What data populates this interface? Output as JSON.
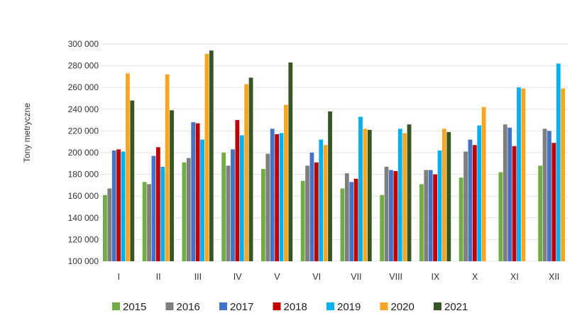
{
  "chart_data": {
    "type": "bar",
    "title": "",
    "xlabel": "",
    "ylabel": "Tony metryczne",
    "ylim": [
      100000,
      300000
    ],
    "yticks": [
      100000,
      120000,
      140000,
      160000,
      180000,
      200000,
      220000,
      240000,
      260000,
      280000,
      300000
    ],
    "ytick_labels": [
      "100 000",
      "120 000",
      "140 000",
      "160 000",
      "180 000",
      "200 000",
      "220 000",
      "240 000",
      "260 000",
      "280 000",
      "300 000"
    ],
    "grid": true,
    "legend": "bottom",
    "categories": [
      "I",
      "II",
      "III",
      "IV",
      "V",
      "VI",
      "VII",
      "VIII",
      "IX",
      "X",
      "XI",
      "XII"
    ],
    "series": [
      {
        "name": "2015",
        "color": "#70ad47",
        "values": [
          161000,
          173000,
          191000,
          200000,
          185000,
          174000,
          167000,
          161000,
          171000,
          177000,
          182000,
          188000
        ]
      },
      {
        "name": "2016",
        "color": "#7f7f7f",
        "values": [
          167000,
          171000,
          195000,
          188000,
          199000,
          188000,
          181000,
          187000,
          184000,
          201000,
          226000,
          222000
        ]
      },
      {
        "name": "2017",
        "color": "#4472c4",
        "values": [
          202000,
          197000,
          228000,
          203000,
          222000,
          200000,
          173000,
          184000,
          184000,
          212000,
          223000,
          220000
        ]
      },
      {
        "name": "2018",
        "color": "#c00000",
        "values": [
          203000,
          205000,
          227000,
          230000,
          217000,
          191000,
          176000,
          183000,
          180000,
          207000,
          206000,
          209000
        ]
      },
      {
        "name": "2019",
        "color": "#00b0f0",
        "values": [
          201000,
          187000,
          212000,
          216000,
          218000,
          212000,
          233000,
          222000,
          202000,
          225000,
          260000,
          282000
        ]
      },
      {
        "name": "2020",
        "color": "#f5a623",
        "values": [
          273000,
          272000,
          291000,
          263000,
          244000,
          207000,
          222000,
          218000,
          222000,
          242000,
          259000,
          259000
        ]
      },
      {
        "name": "2021",
        "color": "#375623",
        "values": [
          248000,
          239000,
          294000,
          269000,
          283000,
          238000,
          221000,
          226000,
          219000,
          null,
          null,
          null
        ]
      }
    ]
  }
}
